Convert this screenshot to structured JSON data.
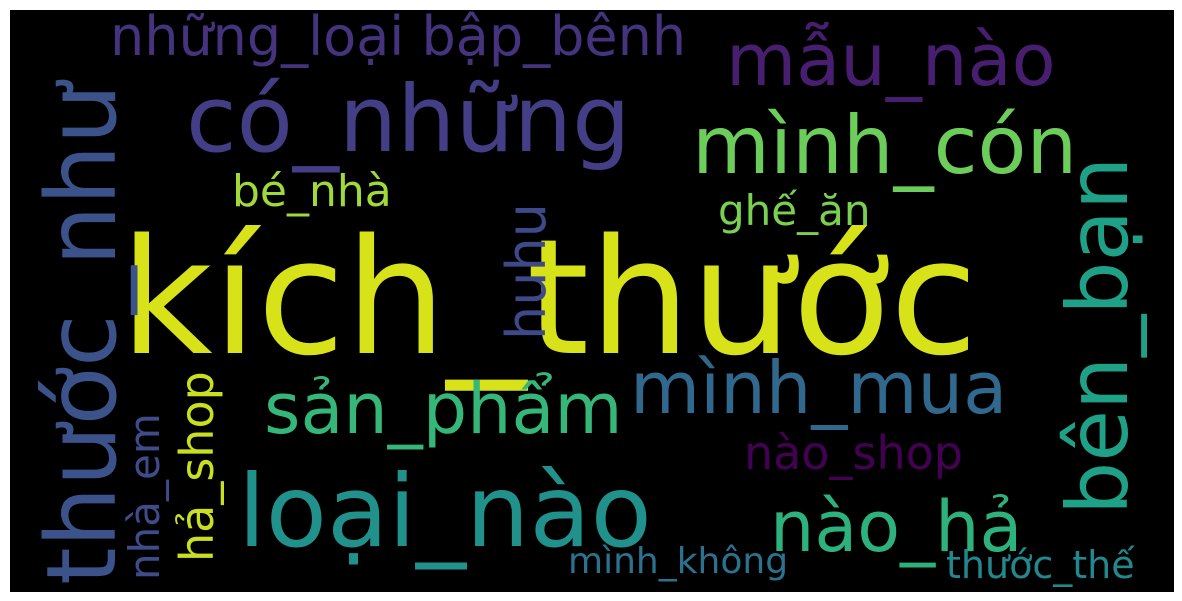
{
  "words": {
    "kich_thuoc": {
      "text": "kích_thước",
      "color": "#d8e219"
    },
    "thuoc_nhu": {
      "text": "thước_như",
      "color": "#3b528b"
    },
    "co_nhung": {
      "text": "có_những",
      "color": "#433e85"
    },
    "nhung_loai": {
      "text": "những_loại bập_bênh",
      "color": "#46337e"
    },
    "mau_nao": {
      "text": "mẫu_nào",
      "color": "#481f70"
    },
    "minh_con": {
      "text": "mình_cón",
      "color": "#6ccd5a"
    },
    "ben_ban": {
      "text": "bên_bạn",
      "color": "#1fa187"
    },
    "huhu": {
      "text": "huhu",
      "color": "#3e4989"
    },
    "be_nha": {
      "text": "bé_nhà",
      "color": "#a0da39"
    },
    "ghe_an": {
      "text": "ghế_ăn",
      "color": "#7ad151"
    },
    "minh_mua": {
      "text": "mình_mua",
      "color": "#31688e"
    },
    "san_pham": {
      "text": "sản_phẩm",
      "color": "#35b779"
    },
    "nao_shop": {
      "text": "nào_shop",
      "color": "#440154"
    },
    "loai_nao": {
      "text": "loại_nào",
      "color": "#21918c"
    },
    "nao_ha": {
      "text": "nào_hả",
      "color": "#2db27d"
    },
    "nha_em": {
      "text": "nhà_em",
      "color": "#3e4c8a"
    },
    "ha_shop": {
      "text": "hả_shop",
      "color": "#c8e020"
    },
    "minh_khong": {
      "text": "mình_không",
      "color": "#2c728e"
    },
    "thuoc_the": {
      "text": "thước_thế",
      "color": "#23888e"
    }
  }
}
